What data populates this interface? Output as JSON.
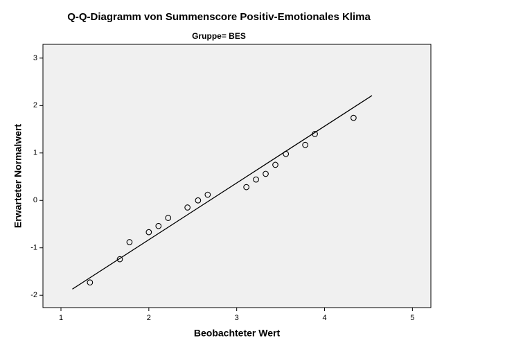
{
  "chart_data": {
    "type": "scatter",
    "title": "Q-Q-Diagramm von Summenscore Positiv-Emotionales Klima",
    "subtitle": "Gruppe= BES",
    "x_label": "Beobachteter Wert",
    "y_label": "Erwarteter Normalwert",
    "x": [
      1.33,
      1.67,
      1.78,
      2.0,
      2.11,
      2.22,
      2.44,
      2.56,
      2.67,
      3.11,
      3.22,
      3.33,
      3.44,
      3.56,
      3.78,
      3.89,
      4.33
    ],
    "values": [
      -1.73,
      -1.24,
      -0.88,
      -0.67,
      -0.54,
      -0.37,
      -0.15,
      0.0,
      0.12,
      0.28,
      0.44,
      0.56,
      0.75,
      0.98,
      1.17,
      1.4,
      1.74
    ],
    "color": "#000000",
    "reference_line": {
      "x": [
        1.13,
        4.54
      ],
      "y": [
        -1.87,
        2.21
      ]
    },
    "xlim": [
      0.795,
      5.21
    ],
    "ylim": [
      -2.26,
      3.29
    ],
    "xticks": [
      1,
      2,
      3,
      4,
      5
    ],
    "yticks": [
      -2,
      -1,
      0,
      1,
      2,
      3
    ],
    "grid": false
  }
}
